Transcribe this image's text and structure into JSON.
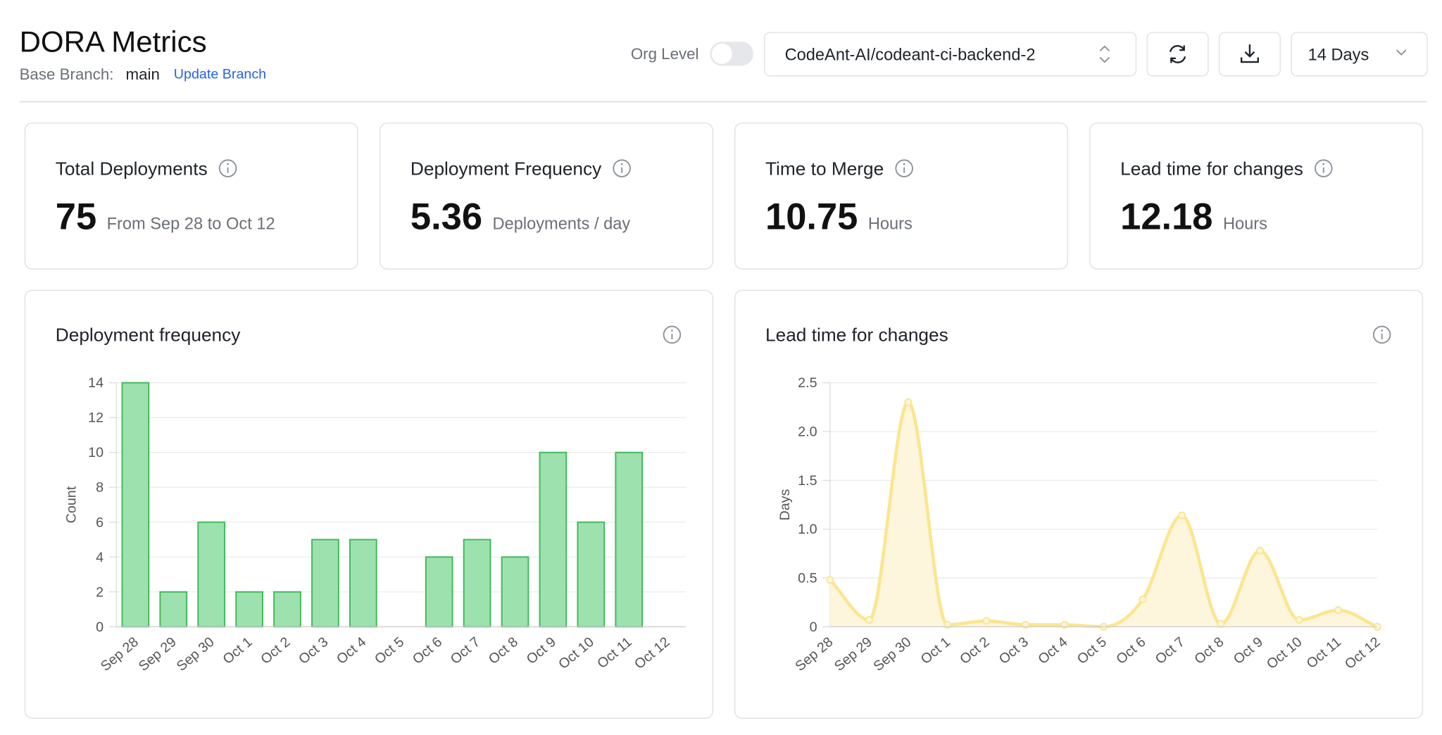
{
  "header": {
    "title": "DORA Metrics",
    "branch_label": "Base Branch:",
    "branch": "main",
    "update_link": "Update Branch",
    "org_level": "Org Level",
    "repo": "CodeAnt-AI/codeant-ci-backend-2",
    "range": "14 Days"
  },
  "metrics": [
    {
      "title": "Total Deployments",
      "value": 75,
      "unit": "From Sep 28 to Oct 12"
    },
    {
      "title": "Deployment Frequency",
      "value": 5.36,
      "unit": "Deployments / day"
    },
    {
      "title": "Time to Merge",
      "value": 10.75,
      "unit": "Hours"
    },
    {
      "title": "Lead time for changes",
      "value": 12.18,
      "unit": "Hours"
    }
  ],
  "chart_data": [
    {
      "type": "bar",
      "title": "Deployment frequency",
      "ylabel": "Count",
      "categories": [
        "Sep 28",
        "Sep 29",
        "Sep 30",
        "Oct 1",
        "Oct 2",
        "Oct 3",
        "Oct 4",
        "Oct 5",
        "Oct 6",
        "Oct 7",
        "Oct 8",
        "Oct 9",
        "Oct 10",
        "Oct 11",
        "Oct 12"
      ],
      "values": [
        14,
        2,
        6,
        2,
        2,
        5,
        5,
        0,
        4,
        5,
        4,
        10,
        6,
        10,
        0
      ],
      "color": "#9de2ae",
      "edge_color": "#3fba5c",
      "ylim": [
        0,
        14
      ],
      "yticks": [
        0,
        2,
        4,
        6,
        8,
        10,
        12,
        14
      ],
      "grid": true
    },
    {
      "type": "area",
      "title": "Lead time for changes",
      "ylabel": "Days",
      "categories": [
        "Sep 28",
        "Sep 29",
        "Sep 30",
        "Oct 1",
        "Oct 2",
        "Oct 3",
        "Oct 4",
        "Oct 5",
        "Oct 6",
        "Oct 7",
        "Oct 8",
        "Oct 9",
        "Oct 10",
        "Oct 11",
        "Oct 12"
      ],
      "values": [
        0.48,
        0.07,
        2.3,
        0.02,
        0.06,
        0.02,
        0.02,
        0.0,
        0.28,
        1.14,
        0.03,
        0.78,
        0.07,
        0.17,
        0.0
      ],
      "color": "#fbe68e",
      "fill_color": "#fdf6dd",
      "ylim": [
        0,
        2.5
      ],
      "yticks": [
        0,
        0.5,
        {
          "value": 1,
          "label": "1.0"
        },
        1.5,
        {
          "value": 2,
          "label": "2.0"
        },
        2.5
      ],
      "grid": true
    }
  ]
}
